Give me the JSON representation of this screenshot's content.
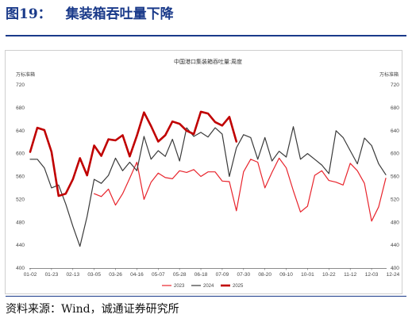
{
  "figure": {
    "number": "图19：",
    "caption": "集装箱吞吐量下降",
    "source": "资料来源：Wind，诚通证券研究所"
  },
  "chart_data": {
    "type": "line",
    "title": "中国港口集装箱吞吐量:周度",
    "ylabel_left": "万标准箱",
    "ylabel_right": "万标准箱",
    "ylim": [
      400,
      720
    ],
    "yticks": [
      400,
      440,
      480,
      520,
      560,
      600,
      640,
      680,
      720
    ],
    "grid": false,
    "legend_position": "bottom",
    "x_ticks": [
      "01-02",
      "01-23",
      "02-13",
      "03-05",
      "03-26",
      "04-16",
      "05-07",
      "05-28",
      "06-18",
      "07-09",
      "07-30",
      "08-20",
      "09-10",
      "10-01",
      "10-22",
      "11-12",
      "12-03",
      "12-24"
    ],
    "series": [
      {
        "name": "2023",
        "color": "#e8242c",
        "values": [
          null,
          null,
          null,
          null,
          null,
          null,
          null,
          null,
          null,
          530,
          525,
          538,
          510,
          530,
          557,
          585,
          520,
          550,
          566,
          558,
          556,
          570,
          567,
          572,
          560,
          568,
          568,
          552,
          551,
          500,
          568,
          590,
          585,
          540,
          567,
          592,
          575,
          535,
          498,
          508,
          562,
          570,
          553,
          550,
          545,
          583,
          570,
          548,
          482,
          507,
          557
        ]
      },
      {
        "name": "2024",
        "color": "#3a3a3a",
        "values": [
          590,
          590,
          575,
          540,
          545,
          512,
          473,
          438,
          490,
          555,
          548,
          562,
          592,
          570,
          585,
          570,
          630,
          590,
          605,
          595,
          625,
          587,
          645,
          630,
          637,
          629,
          645,
          634,
          560,
          610,
          633,
          628,
          590,
          628,
          587,
          604,
          594,
          647,
          590,
          600,
          590,
          580,
          565,
          640,
          628,
          605,
          582,
          627,
          614,
          582,
          563
        ]
      },
      {
        "name": "2025",
        "color": "#c00000",
        "values": [
          603,
          645,
          641,
          603,
          526,
          530,
          555,
          592,
          562,
          614,
          596,
          625,
          623,
          632,
          595,
          631,
          672,
          648,
          621,
          632,
          656,
          652,
          640,
          634,
          673,
          670,
          655,
          649,
          664,
          621
        ]
      }
    ]
  }
}
